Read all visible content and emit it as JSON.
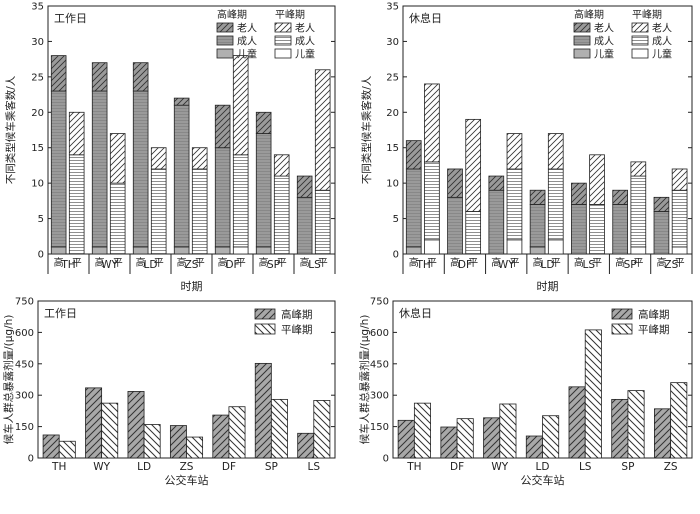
{
  "chart_data": [
    {
      "type": "bar",
      "id": "top_left",
      "panel_label": "工作日",
      "xlabel": "时期",
      "ylabel": "不同类型候车乘客数/人",
      "ylim": [
        0,
        35
      ],
      "yticks": [
        0,
        5,
        10,
        15,
        20,
        25,
        30,
        35
      ],
      "period_labels": [
        "高",
        "平"
      ],
      "legend": {
        "peak_title": "高峰期",
        "offpeak_title": "平峰期",
        "series": [
          "老人",
          "成人",
          "儿童"
        ]
      },
      "categories": [
        "TH",
        "WY",
        "LD",
        "ZS",
        "DF",
        "SP",
        "LS"
      ],
      "series": [
        {
          "name": "高峰期 老人",
          "values": [
            5,
            4,
            4,
            1,
            6,
            3,
            3
          ]
        },
        {
          "name": "高峰期 成人",
          "values": [
            22,
            22,
            22,
            20,
            14,
            16,
            8
          ]
        },
        {
          "name": "高峰期 儿童",
          "values": [
            1,
            1,
            1,
            1,
            1,
            1,
            0
          ]
        },
        {
          "name": "平峰期 老人",
          "values": [
            6,
            7,
            3,
            3,
            14,
            3,
            17
          ]
        },
        {
          "name": "平峰期 成人",
          "values": [
            14,
            10,
            12,
            12,
            13,
            11,
            9
          ]
        },
        {
          "name": "平峰期 儿童",
          "values": [
            0,
            0,
            0,
            0,
            1,
            0,
            0
          ]
        }
      ]
    },
    {
      "type": "bar",
      "id": "top_right",
      "panel_label": "休息日",
      "xlabel": "时期",
      "ylabel": "不同类型候车乘客数/人",
      "ylim": [
        0,
        35
      ],
      "yticks": [
        0,
        5,
        10,
        15,
        20,
        25,
        30,
        35
      ],
      "period_labels": [
        "高",
        "平"
      ],
      "legend": {
        "peak_title": "高峰期",
        "offpeak_title": "平峰期",
        "series": [
          "老人",
          "成人",
          "儿童"
        ]
      },
      "categories": [
        "TH",
        "DF",
        "WY",
        "LD",
        "LS",
        "SP",
        "ZS"
      ],
      "series": [
        {
          "name": "高峰期 老人",
          "values": [
            4,
            4,
            2,
            2,
            3,
            2,
            2
          ]
        },
        {
          "name": "高峰期 成人",
          "values": [
            11,
            8,
            9,
            6,
            7,
            7,
            6
          ]
        },
        {
          "name": "高峰期 儿童",
          "values": [
            1,
            0,
            0,
            1,
            0,
            0,
            0
          ]
        },
        {
          "name": "平峰期 老人",
          "values": [
            11,
            13,
            5,
            5,
            7,
            2,
            3
          ]
        },
        {
          "name": "平峰期 成人",
          "values": [
            11,
            6,
            10,
            10,
            7,
            10,
            8
          ]
        },
        {
          "name": "平峰期 儿童",
          "values": [
            2,
            0,
            2,
            2,
            0,
            1,
            1
          ]
        }
      ]
    },
    {
      "type": "bar",
      "id": "bottom_left",
      "panel_label": "工作日",
      "xlabel": "公交车站",
      "ylabel": "候车人群总暴露剂量/(μg/h)",
      "ylim": [
        0,
        750
      ],
      "yticks": [
        0,
        150,
        300,
        450,
        600,
        750
      ],
      "legend": {
        "series": [
          "高峰期",
          "平峰期"
        ]
      },
      "categories": [
        "TH",
        "WY",
        "LD",
        "ZS",
        "DF",
        "SP",
        "LS"
      ],
      "series": [
        {
          "name": "高峰期",
          "values": [
            110,
            335,
            318,
            155,
            205,
            452,
            118
          ]
        },
        {
          "name": "平峰期",
          "values": [
            80,
            262,
            160,
            100,
            245,
            280,
            275
          ]
        }
      ]
    },
    {
      "type": "bar",
      "id": "bottom_right",
      "panel_label": "休息日",
      "xlabel": "公交车站",
      "ylabel": "候车人群总暴露剂量/(μg/h)",
      "ylim": [
        0,
        750
      ],
      "yticks": [
        0,
        150,
        300,
        450,
        600,
        750
      ],
      "legend": {
        "series": [
          "高峰期",
          "平峰期"
        ]
      },
      "categories": [
        "TH",
        "DF",
        "WY",
        "LD",
        "LS",
        "SP",
        "ZS"
      ],
      "series": [
        {
          "name": "高峰期",
          "values": [
            180,
            148,
            192,
            105,
            340,
            280,
            235
          ]
        },
        {
          "name": "平峰期",
          "values": [
            262,
            188,
            258,
            202,
            612,
            322,
            360
          ]
        }
      ]
    }
  ]
}
